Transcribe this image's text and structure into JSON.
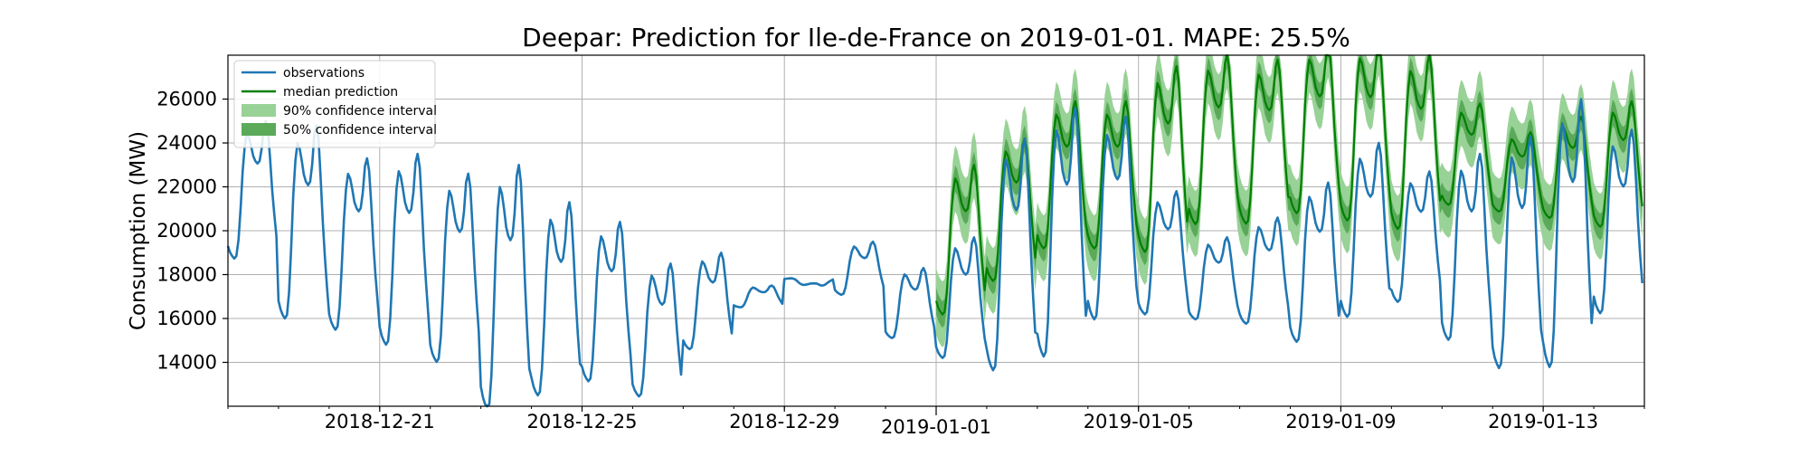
{
  "chart_data": {
    "type": "line",
    "title": "Deepar: Prediction for Ile-de-France on 2019-01-01. MAPE: 25.5%",
    "xlabel": "",
    "ylabel": "Consumption (MW)",
    "x_start": "2018-12-18",
    "x_end": "2019-01-15",
    "ylim": [
      12000,
      28000
    ],
    "yticks": [
      14000,
      16000,
      18000,
      20000,
      22000,
      24000,
      26000
    ],
    "xticks": [
      "2018-12-21",
      "2018-12-25",
      "2018-12-29",
      "2019-01-01",
      "2019-01-05",
      "2019-01-09",
      "2019-01-13"
    ],
    "grid": true,
    "legend_position": "top-left",
    "legend": [
      {
        "label": "observations",
        "kind": "line",
        "color": "#1f77b4"
      },
      {
        "label": "median prediction",
        "kind": "line",
        "color": "#008000"
      },
      {
        "label": "90% confidence interval",
        "kind": "patch",
        "color": "#98d296"
      },
      {
        "label": "50% confidence interval",
        "kind": "patch",
        "color": "#5aaa5a"
      }
    ],
    "series": [
      {
        "name": "observations",
        "color": "#1f77b4",
        "sampling": "hourly from 2018-12-18 00:00",
        "daily_profile": [
          0.0,
          -0.05,
          -0.08,
          -0.1,
          -0.08,
          0.05,
          0.3,
          0.6,
          0.8,
          0.9,
          0.87,
          0.8,
          0.72,
          0.68,
          0.66,
          0.68,
          0.78,
          0.95,
          1.0,
          0.92,
          0.7,
          0.45,
          0.25,
          0.08
        ],
        "daily_min": [
          19300,
          16800,
          16200,
          15600,
          14800,
          12900,
          13300,
          13800,
          13000,
          15000,
          16600,
          17800,
          17300,
          15400,
          14700,
          14600,
          15300,
          16800,
          16700,
          16300,
          16200,
          15600,
          16800,
          17300,
          15800,
          14700,
          14900,
          17000
        ],
        "daily_max": [
          25000,
          24800,
          23300,
          23500,
          22600,
          23000,
          21300,
          20400,
          18500,
          19000,
          17500,
          17500,
          19500,
          18300,
          19700,
          24200,
          25600,
          25200,
          21800,
          19700,
          20600,
          22200,
          24000,
          22700,
          23500,
          24300,
          26000,
          24600
        ]
      }
    ],
    "forecast": {
      "start": "2019-01-01",
      "end": "2019-01-15",
      "median_daily_min": [
        16800,
        18300,
        19800,
        19800,
        19800,
        21000,
        21000,
        21500,
        21200,
        20800,
        21600,
        21200,
        21000,
        20700
      ],
      "median_daily_max": [
        23000,
        24200,
        25900,
        25900,
        27500,
        28000,
        27800,
        28500,
        28600,
        28000,
        25800,
        24500,
        25200,
        25900
      ],
      "ci50_halfwidth": 600,
      "ci90_halfwidth": 1500,
      "median_color": "#008000",
      "ci50_color": "#5aaa5a",
      "ci90_color": "#98d296"
    }
  }
}
